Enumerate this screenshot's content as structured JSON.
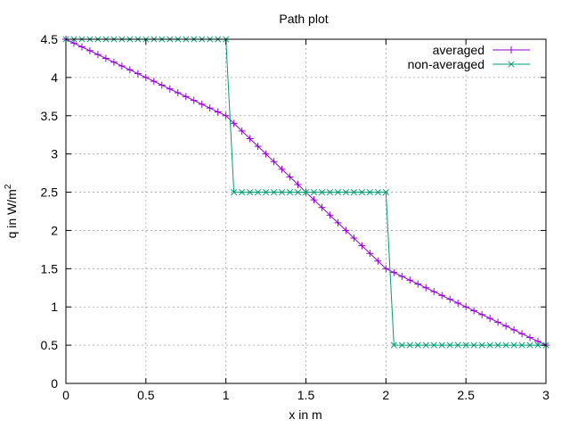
{
  "chart_data": {
    "type": "line",
    "title": "Path plot",
    "xlabel": "x in m",
    "ylabel_text": "q in W/m",
    "ylabel_superscript": "2",
    "xlim": [
      0,
      3
    ],
    "ylim": [
      0,
      4.5
    ],
    "x_ticks": [
      "0",
      "0.5",
      "1",
      "1.5",
      "2",
      "2.5",
      "3"
    ],
    "y_ticks": [
      "0",
      "0.5",
      "1",
      "1.5",
      "2",
      "2.5",
      "3",
      "3.5",
      "4",
      "4.5"
    ],
    "grid": true,
    "legend_position": "top-right",
    "series": [
      {
        "name": "averaged",
        "color": "#9400d3",
        "marker": "plus",
        "x": [
          0,
          1,
          2,
          3
        ],
        "y": [
          4.5,
          3.5,
          1.5,
          0.5
        ],
        "marker_step": 0.05
      },
      {
        "name": "non-averaged",
        "color": "#009e73",
        "marker": "cross",
        "x": [
          0,
          1,
          1.05,
          2,
          2.05,
          3
        ],
        "y": [
          4.5,
          4.5,
          2.5,
          2.5,
          0.5,
          0.5
        ],
        "marker_step": 0.05
      }
    ]
  }
}
